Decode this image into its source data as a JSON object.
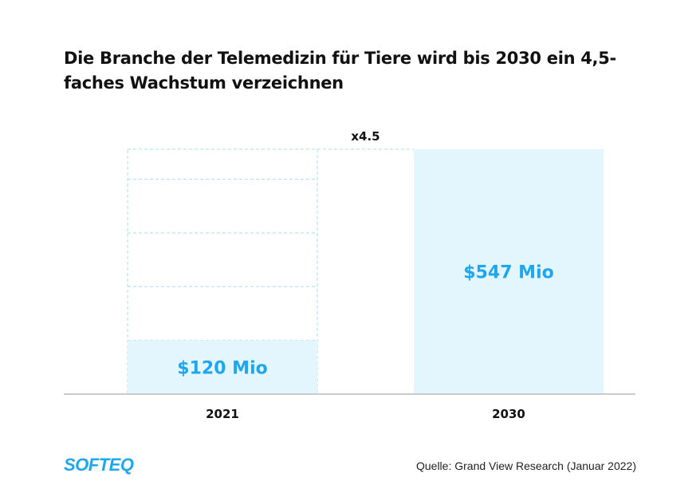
{
  "title": "Die Branche der Telemedizin für Tiere wird bis 2030 ein 4,5-faches Wachstum verzeichnen",
  "source": "Quelle: Grand View Research (Januar 2022)",
  "logo": "SOFTEQ",
  "colors": {
    "fill": "#e3f5fd",
    "dash": "#a8dcf2",
    "label": "#1ea7ee",
    "axis": "#bbbbbb"
  },
  "chart_data": {
    "type": "bar",
    "title": "Die Branche der Telemedizin für Tiere wird bis 2030 ein 4,5-faches Wachstum verzeichnen",
    "categories": [
      "2021",
      "2030"
    ],
    "values": [
      120,
      547
    ],
    "value_labels": [
      "$120 Mio",
      "$547 Mio"
    ],
    "unit": "Mio USD",
    "annotation": "x4.5",
    "ylim": [
      0,
      547
    ],
    "grid": false
  }
}
